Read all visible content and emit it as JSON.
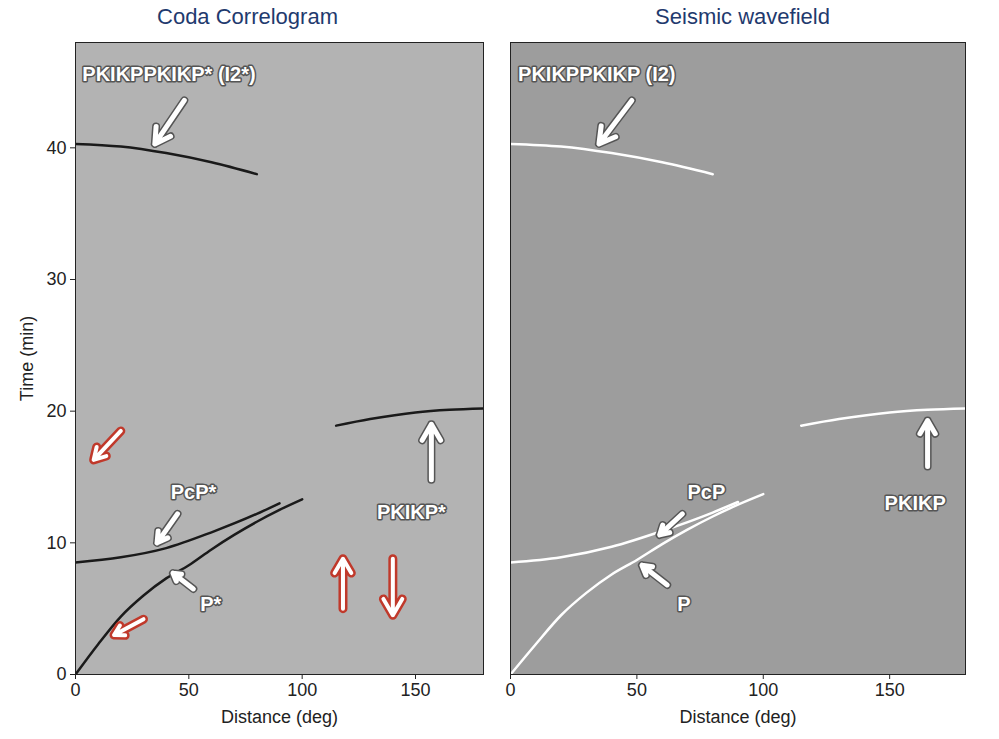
{
  "chart_data": [
    {
      "type": "line",
      "title": "Coda Correlogram",
      "xlabel": "Distance (deg)",
      "ylabel": "Time (min)",
      "xlim": [
        0,
        180
      ],
      "xticks": [
        0,
        50,
        100,
        150
      ],
      "ylim": [
        0,
        48
      ],
      "yticks": [
        0,
        10,
        20,
        30,
        40
      ],
      "tick_labels": true,
      "series": [
        {
          "name": "P*",
          "color": "#1a1a1a",
          "x": [
            0,
            10,
            20,
            30,
            40,
            50,
            60,
            70,
            80,
            90,
            100
          ],
          "values": [
            0,
            2.3,
            4.4,
            6.0,
            7.3,
            8.3,
            9.5,
            10.6,
            11.6,
            12.5,
            13.3
          ],
          "label": {
            "x": 55,
            "y": 5.3,
            "arrow": [
              52,
              6.5,
              43,
              7.7
            ]
          }
        },
        {
          "name": "PcP*",
          "color": "#1a1a1a",
          "x": [
            0,
            20,
            40,
            60,
            80,
            90
          ],
          "values": [
            8.5,
            8.9,
            9.6,
            10.8,
            12.2,
            13.0
          ],
          "label": {
            "x": 42,
            "y": 13.8,
            "arrow": [
              45,
              12.2,
              36,
              10.0
            ]
          }
        },
        {
          "name": "PKIKP*",
          "color": "#1a1a1a",
          "x": [
            115,
            130,
            150,
            165,
            180
          ],
          "values": [
            18.9,
            19.4,
            19.9,
            20.1,
            20.2
          ],
          "label": {
            "x": 133,
            "y": 12.3,
            "arrow": [
              157,
              14.8,
              157,
              19.0
            ]
          }
        },
        {
          "name": "PKIKPPKIKP* (I2*)",
          "color": "#1a1a1a",
          "x": [
            0,
            20,
            40,
            60,
            80
          ],
          "values": [
            40.3,
            40.1,
            39.6,
            38.9,
            38.0
          ],
          "label": {
            "x": 3,
            "y": 45.6,
            "arrow": [
              48,
              43.6,
              35,
              40.3
            ]
          }
        }
      ],
      "arrows": [
        {
          "from": [
            20,
            18.5
          ],
          "to": [
            8,
            16.3
          ],
          "color": "#c0392b"
        },
        {
          "from": [
            30,
            4.2
          ],
          "to": [
            17,
            3.0
          ],
          "color": "#c0392b"
        },
        {
          "from": [
            118,
            5.0
          ],
          "to": [
            118,
            8.8
          ],
          "color": "#c0392b"
        },
        {
          "from": [
            140,
            8.8
          ],
          "to": [
            140,
            4.5
          ],
          "color": "#c0392b"
        }
      ]
    },
    {
      "type": "line",
      "title": "Seismic wavefield",
      "xlabel": "Distance (deg)",
      "xlim": [
        0,
        180
      ],
      "xticks": [
        0,
        50,
        100,
        150
      ],
      "ylim": [
        0,
        48
      ],
      "tick_labels": "x",
      "series": [
        {
          "name": "P",
          "color": "#ffffff",
          "x": [
            0,
            10,
            20,
            30,
            40,
            50,
            60,
            70,
            80,
            90,
            100
          ],
          "values": [
            0,
            2.3,
            4.5,
            6.2,
            7.6,
            8.7,
            9.9,
            11.0,
            12.0,
            12.9,
            13.7
          ],
          "label": {
            "x": 66,
            "y": 5.3,
            "arrow": [
              62,
              6.8,
              52,
              8.3
            ]
          }
        },
        {
          "name": "PcP",
          "color": "#ffffff",
          "x": [
            0,
            20,
            40,
            60,
            80,
            90
          ],
          "values": [
            8.5,
            8.9,
            9.7,
            10.9,
            12.3,
            13.1
          ],
          "label": {
            "x": 70,
            "y": 13.8,
            "arrow": [
              68,
              12.2,
              59,
              10.6
            ]
          }
        },
        {
          "name": "PKIKP",
          "color": "#ffffff",
          "x": [
            115,
            130,
            150,
            165,
            180
          ],
          "values": [
            18.9,
            19.4,
            19.9,
            20.1,
            20.2
          ],
          "label": {
            "x": 148,
            "y": 13.0,
            "arrow": [
              165,
              15.8,
              165,
              19.3
            ]
          }
        },
        {
          "name": "PKIKPPKIKP (I2)",
          "color": "#ffffff",
          "x": [
            0,
            20,
            40,
            60,
            80
          ],
          "values": [
            40.3,
            40.1,
            39.6,
            38.9,
            38.0
          ],
          "label": {
            "x": 3,
            "y": 45.6,
            "arrow": [
              48,
              43.6,
              35,
              40.3
            ]
          }
        }
      ]
    }
  ]
}
